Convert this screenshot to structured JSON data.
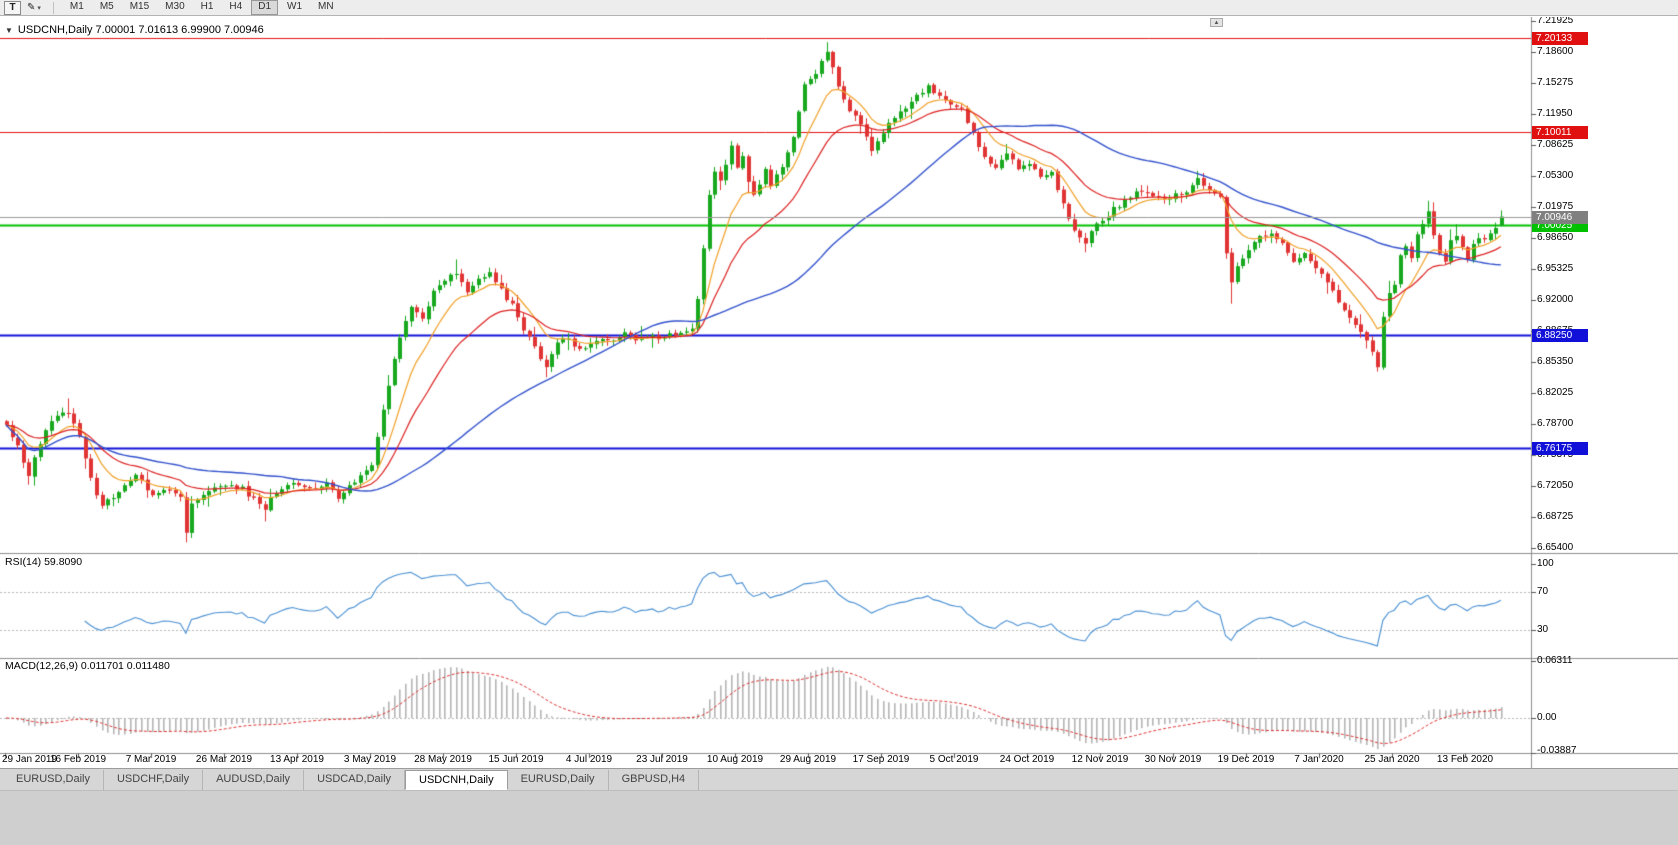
{
  "toolbar": {
    "text_tool_label": "T",
    "icons": {
      "pencil": "✎",
      "caret": "▾"
    },
    "timeframes": [
      "M1",
      "M5",
      "M15",
      "M30",
      "H1",
      "H4",
      "D1",
      "W1",
      "MN"
    ],
    "active_timeframe": "D1"
  },
  "chart": {
    "symbol": "USDCNH",
    "period": "Daily",
    "title_line": "USDCNH,Daily 7.00001 7.01613 6.99900 7.00946",
    "collapse_arrow": "▼",
    "scroll_icon": "▲",
    "price_axis_ticks": [
      "7.21925",
      "7.18600",
      "7.15275",
      "7.11950",
      "7.08625",
      "7.05300",
      "7.01975",
      "6.98650",
      "6.95325",
      "6.92000",
      "6.88675",
      "6.85350",
      "6.82025",
      "6.78700",
      "6.75375",
      "6.72050",
      "6.68725",
      "6.65400"
    ],
    "date_labels": [
      "29 Jan 2019",
      "16 Feb 2019",
      "7 Mar 2019",
      "26 Mar 2019",
      "13 Apr 2019",
      "3 May 2019",
      "28 May 2019",
      "15 Jun 2019",
      "4 Jul 2019",
      "23 Jul 2019",
      "10 Aug 2019",
      "29 Aug 2019",
      "17 Sep 2019",
      "5 Oct 2019",
      "24 Oct 2019",
      "12 Nov 2019",
      "30 Nov 2019",
      "19 Dec 2019",
      "7 Jan 2020",
      "25 Jan 2020",
      "13 Feb 2020"
    ]
  },
  "indicators": {
    "rsi": {
      "label": "RSI(14) 59.8090",
      "period": 14,
      "current": 59.809,
      "scale_labels": [
        "100",
        "70",
        "30"
      ],
      "scale_values": [
        100,
        70,
        30
      ],
      "line_color": "#4a90d2"
    },
    "macd": {
      "label": "MACD(12,26,9) 0.011701 0.011480",
      "fast": 12,
      "slow": 26,
      "signal": 9,
      "current_main": 0.011701,
      "current_signal": 0.01148,
      "scale_labels": [
        "0.06311",
        "0.00",
        "-0.03887"
      ],
      "scale_values": [
        0.06311,
        0,
        -0.03887
      ],
      "histogram_color": "#b4b4b4",
      "signal_color": "#dd3333"
    }
  },
  "tabs": {
    "items": [
      "EURUSD,Daily",
      "USDCHF,Daily",
      "AUDUSD,Daily",
      "USDCAD,Daily",
      "USDCNH,Daily",
      "EURUSD,Daily",
      "GBPUSD,H4"
    ],
    "active_index": 4
  },
  "chart_data": {
    "type": "candlestick",
    "symbol": "USDCNH",
    "timeframe": "Daily",
    "n_candles": 267,
    "y_axis": {
      "max": 7.21925,
      "tick_step": 0.03325,
      "ticks": 18
    },
    "colors": {
      "bull": "#18a81e",
      "bear": "#e03434",
      "ma_fast": "#f0a028",
      "ma_mid": "#dd2222",
      "ma_slow": "#3352cc",
      "bid_line": "#9a9a9a"
    },
    "price_anchors": [
      [
        0,
        6.785
      ],
      [
        2,
        6.762
      ],
      [
        4,
        6.734
      ],
      [
        6,
        6.768
      ],
      [
        9,
        6.797
      ],
      [
        11,
        6.8
      ],
      [
        13,
        6.772
      ],
      [
        15,
        6.728
      ],
      [
        17,
        6.698
      ],
      [
        20,
        6.716
      ],
      [
        23,
        6.73
      ],
      [
        26,
        6.712
      ],
      [
        29,
        6.718
      ],
      [
        31,
        6.708
      ],
      [
        32,
        6.672
      ],
      [
        33,
        6.7
      ],
      [
        36,
        6.716
      ],
      [
        39,
        6.722
      ],
      [
        42,
        6.718
      ],
      [
        44,
        6.706
      ],
      [
        46,
        6.698
      ],
      [
        48,
        6.715
      ],
      [
        51,
        6.726
      ],
      [
        54,
        6.716
      ],
      [
        57,
        6.722
      ],
      [
        59,
        6.708
      ],
      [
        61,
        6.722
      ],
      [
        63,
        6.732
      ],
      [
        65,
        6.74
      ],
      [
        66,
        6.772
      ],
      [
        67,
        6.8
      ],
      [
        68,
        6.826
      ],
      [
        69,
        6.855
      ],
      [
        70,
        6.878
      ],
      [
        71,
        6.896
      ],
      [
        72,
        6.912
      ],
      [
        74,
        6.902
      ],
      [
        76,
        6.928
      ],
      [
        78,
        6.94
      ],
      [
        80,
        6.95
      ],
      [
        82,
        6.928
      ],
      [
        84,
        6.94
      ],
      [
        86,
        6.948
      ],
      [
        88,
        6.93
      ],
      [
        90,
        6.915
      ],
      [
        92,
        6.888
      ],
      [
        94,
        6.868
      ],
      [
        96,
        6.85
      ],
      [
        98,
        6.872
      ],
      [
        100,
        6.88
      ],
      [
        102,
        6.866
      ],
      [
        104,
        6.872
      ],
      [
        106,
        6.88
      ],
      [
        108,
        6.874
      ],
      [
        110,
        6.884
      ],
      [
        112,
        6.876
      ],
      [
        114,
        6.882
      ],
      [
        116,
        6.878
      ],
      [
        118,
        6.882
      ],
      [
        120,
        6.886
      ],
      [
        122,
        6.892
      ],
      [
        123,
        6.92
      ],
      [
        124,
        6.975
      ],
      [
        125,
        7.03
      ],
      [
        126,
        7.058
      ],
      [
        127,
        7.048
      ],
      [
        128,
        7.068
      ],
      [
        129,
        7.085
      ],
      [
        130,
        7.06
      ],
      [
        131,
        7.072
      ],
      [
        132,
        7.048
      ],
      [
        133,
        7.034
      ],
      [
        134,
        7.046
      ],
      [
        135,
        7.058
      ],
      [
        136,
        7.042
      ],
      [
        137,
        7.052
      ],
      [
        138,
        7.064
      ],
      [
        139,
        7.08
      ],
      [
        140,
        7.092
      ],
      [
        141,
        7.125
      ],
      [
        142,
        7.152
      ],
      [
        143,
        7.158
      ],
      [
        144,
        7.165
      ],
      [
        145,
        7.178
      ],
      [
        146,
        7.188
      ],
      [
        147,
        7.168
      ],
      [
        148,
        7.148
      ],
      [
        150,
        7.122
      ],
      [
        152,
        7.108
      ],
      [
        154,
        7.082
      ],
      [
        156,
        7.098
      ],
      [
        158,
        7.118
      ],
      [
        160,
        7.128
      ],
      [
        162,
        7.138
      ],
      [
        164,
        7.148
      ],
      [
        166,
        7.14
      ],
      [
        168,
        7.132
      ],
      [
        170,
        7.125
      ],
      [
        172,
        7.098
      ],
      [
        174,
        7.072
      ],
      [
        176,
        7.062
      ],
      [
        178,
        7.078
      ],
      [
        180,
        7.062
      ],
      [
        182,
        7.068
      ],
      [
        184,
        7.055
      ],
      [
        186,
        7.058
      ],
      [
        188,
        7.022
      ],
      [
        190,
        6.992
      ],
      [
        192,
        6.982
      ],
      [
        194,
        7.002
      ],
      [
        196,
        7.012
      ],
      [
        198,
        7.022
      ],
      [
        200,
        7.032
      ],
      [
        202,
        7.038
      ],
      [
        204,
        7.034
      ],
      [
        206,
        7.028
      ],
      [
        208,
        7.032
      ],
      [
        210,
        7.038
      ],
      [
        212,
        7.048
      ],
      [
        214,
        7.036
      ],
      [
        216,
        7.028
      ],
      [
        217,
        6.972
      ],
      [
        218,
        6.938
      ],
      [
        219,
        6.958
      ],
      [
        221,
        6.976
      ],
      [
        223,
        6.986
      ],
      [
        225,
        6.992
      ],
      [
        227,
        6.98
      ],
      [
        229,
        6.962
      ],
      [
        231,
        6.97
      ],
      [
        233,
        6.952
      ],
      [
        235,
        6.94
      ],
      [
        237,
        6.918
      ],
      [
        239,
        6.898
      ],
      [
        241,
        6.884
      ],
      [
        243,
        6.864
      ],
      [
        244,
        6.85
      ],
      [
        245,
        6.902
      ],
      [
        246,
        6.928
      ],
      [
        247,
        6.938
      ],
      [
        248,
        6.968
      ],
      [
        249,
        6.976
      ],
      [
        250,
        6.966
      ],
      [
        251,
        6.988
      ],
      [
        252,
        7.0
      ],
      [
        253,
        7.018
      ],
      [
        254,
        6.99
      ],
      [
        255,
        6.972
      ],
      [
        256,
        6.964
      ],
      [
        257,
        6.982
      ],
      [
        258,
        6.986
      ],
      [
        259,
        6.974
      ],
      [
        260,
        6.962
      ],
      [
        261,
        6.978
      ],
      [
        262,
        6.986
      ],
      [
        263,
        6.988
      ],
      [
        264,
        6.992
      ],
      [
        265,
        7.0
      ],
      [
        266,
        7.009
      ]
    ],
    "wick_low_overrides": {
      "32": 6.66,
      "46": 6.684,
      "96": 6.837,
      "218": 6.916,
      "244": 6.8452
    },
    "wick_high_overrides": {
      "11": 6.8145,
      "80": 6.9635,
      "146": 7.1965,
      "253": 7.0265
    },
    "last_candle": {
      "open": 7.00001,
      "high": 7.01613,
      "low": 6.999,
      "close": 7.00946
    },
    "moving_averages": [
      {
        "type": "ema",
        "period": 9,
        "color_key": "ma_fast"
      },
      {
        "type": "ema",
        "period": 20,
        "color_key": "ma_mid"
      },
      {
        "type": "sma",
        "period": 50,
        "color_key": "ma_slow"
      }
    ],
    "horizontal_lines": [
      {
        "value": 7.2013,
        "label": "7.20133",
        "color": "#e01010",
        "width": 1,
        "role": "resistance-upper"
      },
      {
        "value": 7.1001,
        "label": "7.10011",
        "color": "#e01010",
        "width": 1,
        "role": "resistance"
      },
      {
        "value": 7.00025,
        "label": "7.00025",
        "color": "#00c000",
        "width": 2,
        "role": "key-level"
      },
      {
        "value": 6.8825,
        "label": "6.88250",
        "color": "#1010d8",
        "width": 2,
        "role": "support"
      },
      {
        "value": 6.7617,
        "label": "6.76175",
        "color": "#1010d8",
        "width": 2,
        "role": "support-lower"
      },
      {
        "value": 7.00946,
        "label": "7.00946",
        "color": "#808080",
        "width": 1,
        "role": "bid"
      }
    ]
  }
}
